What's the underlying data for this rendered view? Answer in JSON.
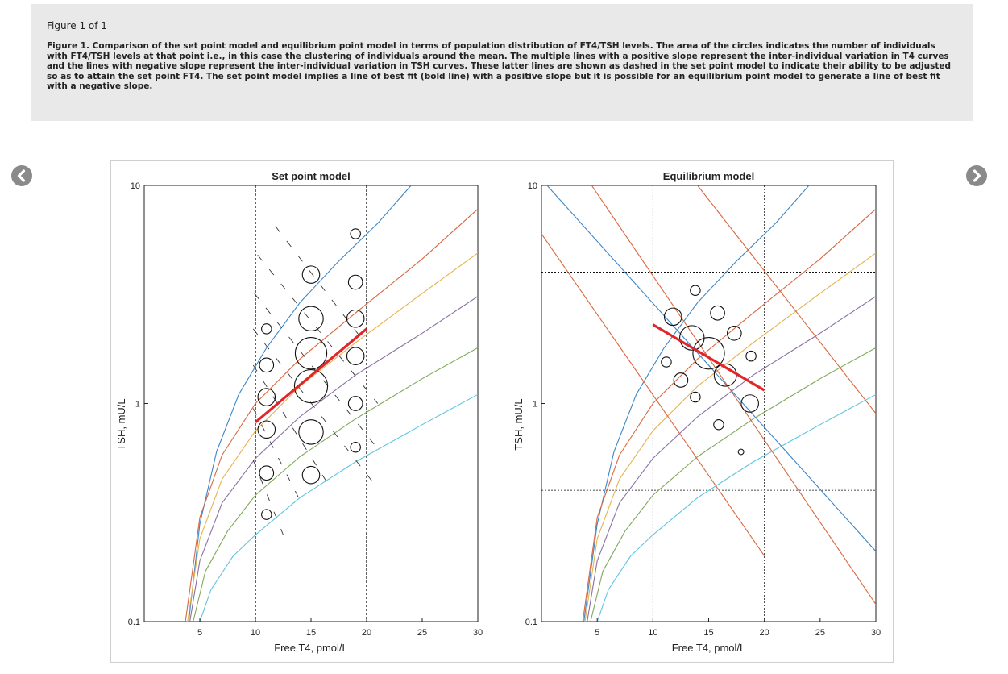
{
  "caption": {
    "heading": "Figure 1 of 1",
    "text": "Figure 1. Comparison of the set point model and equilibrium point model in terms of population distribution of FT4/TSH levels. The area of the circles indicates the number of individuals with FT4/TSH levels at that point i.e., in this case the clustering of individuals around the mean. The multiple lines with a positive slope represent the inter-individual variation in T4 curves and the lines with negative slope represent the inter-individual variation in TSH curves. These latter lines are shown as dashed in the set point model to indicate their ability to be adjusted so as to attain the set point FT4. The set point model implies a line of best fit (bold line) with a positive slope but it is possible for an equilibrium point model to generate a line of best fit with a negative slope."
  },
  "nav": {
    "prev_icon": "chevron-left-icon",
    "next_icon": "chevron-right-icon"
  },
  "chart_data": [
    {
      "type": "scatter",
      "title": "Set point model",
      "xlabel": "Free T4, pmol/L",
      "ylabel": "TSH, mU/L",
      "xlim": [
        0,
        30
      ],
      "ylim": [
        0.1,
        10
      ],
      "yscale": "log",
      "xticks": [
        "5",
        "10",
        "15",
        "20",
        "25",
        "30"
      ],
      "yticks": [
        "0.1",
        "1",
        "10"
      ],
      "reference_lines": {
        "vertical_x": [
          10,
          20
        ]
      },
      "t4_curves": [
        {
          "color": "#3d86c6",
          "x": [
            4.0,
            5.0,
            6.5,
            8.5,
            11,
            14,
            17.5,
            21,
            24
          ],
          "y": [
            0.1,
            0.28,
            0.6,
            1.1,
            1.8,
            2.9,
            4.5,
            6.7,
            10
          ]
        },
        {
          "color": "#d9673f",
          "x": [
            3.7,
            5.0,
            7.0,
            10,
            14,
            19,
            25,
            30
          ],
          "y": [
            0.1,
            0.3,
            0.58,
            1.0,
            1.6,
            2.6,
            4.6,
            7.8
          ]
        },
        {
          "color": "#e6b34a",
          "x": [
            3.9,
            5.0,
            7.0,
            10,
            14,
            19,
            25,
            30
          ],
          "y": [
            0.1,
            0.24,
            0.45,
            0.75,
            1.2,
            1.9,
            3.2,
            4.9
          ]
        },
        {
          "color": "#8a6fa3",
          "x": [
            4.1,
            5.0,
            7.0,
            10,
            14,
            19,
            25,
            30
          ],
          "y": [
            0.1,
            0.19,
            0.35,
            0.56,
            0.87,
            1.35,
            2.1,
            3.1
          ]
        },
        {
          "color": "#7fa95a",
          "x": [
            4.4,
            5.5,
            7.5,
            10,
            14,
            19,
            25,
            30
          ],
          "y": [
            0.1,
            0.17,
            0.26,
            0.38,
            0.57,
            0.85,
            1.3,
            1.8
          ]
        },
        {
          "color": "#5fc4e0",
          "x": [
            5.0,
            6.0,
            8.0,
            10,
            14,
            19,
            25,
            30
          ],
          "y": [
            0.1,
            0.14,
            0.2,
            0.25,
            0.37,
            0.54,
            0.8,
            1.1
          ]
        }
      ],
      "tsh_dashes": [
        {
          "x": [
            11.8,
            19.5
          ],
          "y": [
            6.5,
            2.0
          ]
        },
        {
          "x": [
            10.2,
            21
          ],
          "y": [
            4.8,
            1.0
          ]
        },
        {
          "x": [
            9.9,
            21
          ],
          "y": [
            3.2,
            0.62
          ]
        },
        {
          "x": [
            9.8,
            20.5
          ],
          "y": [
            2.2,
            0.44
          ]
        },
        {
          "x": [
            9.8,
            16.5
          ],
          "y": [
            1.5,
            0.43
          ]
        },
        {
          "x": [
            9.8,
            14
          ],
          "y": [
            0.95,
            0.36
          ]
        },
        {
          "x": [
            9.8,
            12.5
          ],
          "y": [
            0.55,
            0.25
          ]
        }
      ],
      "points": [
        {
          "x": 19.0,
          "y": 6.0,
          "size": 1
        },
        {
          "x": 15.0,
          "y": 3.9,
          "size": 3
        },
        {
          "x": 19.0,
          "y": 3.6,
          "size": 2
        },
        {
          "x": 15.0,
          "y": 2.45,
          "size": 6
        },
        {
          "x": 19.0,
          "y": 2.45,
          "size": 3
        },
        {
          "x": 11.0,
          "y": 2.2,
          "size": 1
        },
        {
          "x": 15.0,
          "y": 1.7,
          "size": 10
        },
        {
          "x": 19.0,
          "y": 1.65,
          "size": 3
        },
        {
          "x": 11.0,
          "y": 1.5,
          "size": 2
        },
        {
          "x": 15.0,
          "y": 1.2,
          "size": 11
        },
        {
          "x": 11.0,
          "y": 1.07,
          "size": 3
        },
        {
          "x": 19.0,
          "y": 1.0,
          "size": 2
        },
        {
          "x": 11.0,
          "y": 0.76,
          "size": 3
        },
        {
          "x": 15.0,
          "y": 0.74,
          "size": 6
        },
        {
          "x": 19.0,
          "y": 0.63,
          "size": 1
        },
        {
          "x": 11.0,
          "y": 0.48,
          "size": 2
        },
        {
          "x": 15.0,
          "y": 0.47,
          "size": 3
        },
        {
          "x": 11.0,
          "y": 0.31,
          "size": 1
        }
      ],
      "fit_line": {
        "color": "#e0262b",
        "x": [
          10,
          20
        ],
        "y": [
          0.82,
          2.2
        ]
      }
    },
    {
      "type": "scatter",
      "title": "Equilibrium model",
      "xlabel": "Free T4, pmol/L",
      "ylabel": "TSH, mU/L",
      "xlim": [
        0,
        30
      ],
      "ylim": [
        0.1,
        10
      ],
      "yscale": "log",
      "xticks": [
        "5",
        "10",
        "15",
        "20",
        "25",
        "30"
      ],
      "yticks": [
        "0.1",
        "1",
        "10"
      ],
      "reference_lines": {
        "vertical_x": [
          10,
          20
        ],
        "horizontal_y": [
          4.0,
          0.4
        ]
      },
      "t4_curves": [
        {
          "color": "#3d86c6",
          "x": [
            3.8,
            5.0,
            6.5,
            8.5,
            11,
            14,
            17.5,
            21,
            24
          ],
          "y": [
            0.1,
            0.28,
            0.6,
            1.1,
            1.8,
            2.9,
            4.5,
            6.7,
            10
          ]
        },
        {
          "color": "#d9673f",
          "x": [
            3.7,
            5.0,
            7.0,
            10,
            14,
            19,
            25,
            30
          ],
          "y": [
            0.1,
            0.3,
            0.58,
            1.0,
            1.6,
            2.6,
            4.6,
            7.8
          ]
        },
        {
          "color": "#e6b34a",
          "x": [
            3.9,
            5.0,
            7.0,
            10,
            14,
            19,
            25,
            30
          ],
          "y": [
            0.1,
            0.24,
            0.45,
            0.75,
            1.2,
            1.9,
            3.2,
            4.9
          ]
        },
        {
          "color": "#8a6fa3",
          "x": [
            4.1,
            5.0,
            7.0,
            10,
            14,
            19,
            25,
            30
          ],
          "y": [
            0.1,
            0.19,
            0.35,
            0.56,
            0.87,
            1.35,
            2.1,
            3.1
          ]
        },
        {
          "color": "#7fa95a",
          "x": [
            4.4,
            5.5,
            7.5,
            10,
            14,
            19,
            25,
            30
          ],
          "y": [
            0.1,
            0.17,
            0.26,
            0.38,
            0.57,
            0.85,
            1.3,
            1.8
          ]
        },
        {
          "color": "#5fc4e0",
          "x": [
            5.0,
            6.0,
            8.0,
            10,
            14,
            19,
            25,
            30
          ],
          "y": [
            0.1,
            0.14,
            0.2,
            0.25,
            0.37,
            0.54,
            0.8,
            1.1
          ]
        }
      ],
      "tsh_lines": [
        {
          "color": "#3d86c6",
          "x": [
            0.5,
            30
          ],
          "y": [
            10,
            0.21
          ]
        },
        {
          "color": "#d9673f",
          "x": [
            4.5,
            30
          ],
          "y": [
            10,
            0.12
          ]
        },
        {
          "color": "#d9673f",
          "x": [
            0,
            20
          ],
          "y": [
            6.0,
            0.2
          ]
        },
        {
          "color": "#d9673f",
          "x": [
            14,
            30
          ],
          "y": [
            10,
            0.9
          ]
        }
      ],
      "points": [
        {
          "x": 13.8,
          "y": 3.3,
          "size": 1
        },
        {
          "x": 11.8,
          "y": 2.5,
          "size": 3
        },
        {
          "x": 15.8,
          "y": 2.6,
          "size": 2
        },
        {
          "x": 13.5,
          "y": 2.0,
          "size": 6
        },
        {
          "x": 17.3,
          "y": 2.1,
          "size": 2
        },
        {
          "x": 15.0,
          "y": 1.7,
          "size": 10
        },
        {
          "x": 18.8,
          "y": 1.65,
          "size": 1
        },
        {
          "x": 11.2,
          "y": 1.55,
          "size": 1
        },
        {
          "x": 16.5,
          "y": 1.35,
          "size": 5
        },
        {
          "x": 12.5,
          "y": 1.28,
          "size": 2
        },
        {
          "x": 13.8,
          "y": 1.07,
          "size": 1
        },
        {
          "x": 18.7,
          "y": 1.0,
          "size": 3
        },
        {
          "x": 15.9,
          "y": 0.8,
          "size": 1
        },
        {
          "x": 17.9,
          "y": 0.6,
          "size": 0.3
        }
      ],
      "fit_line": {
        "color": "#e0262b",
        "x": [
          10,
          20
        ],
        "y": [
          2.3,
          1.15
        ]
      }
    }
  ]
}
